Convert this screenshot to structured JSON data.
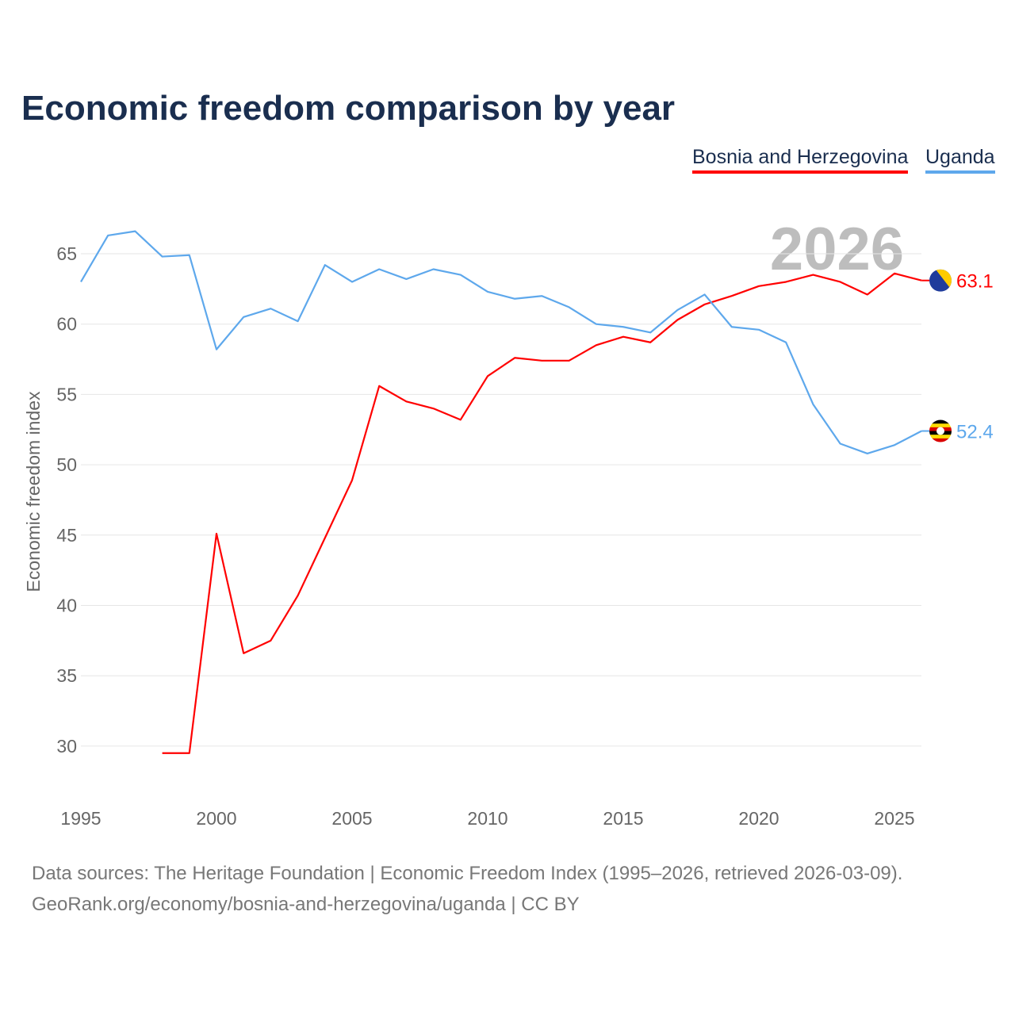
{
  "chart_data": {
    "type": "line",
    "title": "Economic freedom comparison by year",
    "ylabel": "Economic freedom index",
    "xlabel": "",
    "xlim": [
      1995,
      2026
    ],
    "ylim": [
      27.5,
      68
    ],
    "xticks": [
      1995,
      2000,
      2005,
      2010,
      2015,
      2020,
      2025
    ],
    "yticks": [
      30,
      35,
      40,
      45,
      50,
      55,
      60,
      65
    ],
    "grid": true,
    "legend_position": "top-right",
    "year_watermark": "2026",
    "series": [
      {
        "name": "Bosnia and Herzegovina",
        "color": "#ff0000",
        "flag": "bosnia-flag",
        "end_label": "63.1",
        "x": [
          1998,
          1999,
          2000,
          2001,
          2002,
          2003,
          2004,
          2005,
          2006,
          2007,
          2008,
          2009,
          2010,
          2011,
          2012,
          2013,
          2014,
          2015,
          2016,
          2017,
          2018,
          2019,
          2020,
          2021,
          2022,
          2023,
          2024,
          2025,
          2026
        ],
        "values": [
          29.5,
          29.5,
          45.1,
          36.6,
          37.5,
          40.7,
          44.8,
          48.9,
          55.6,
          54.5,
          54.0,
          53.2,
          56.3,
          57.6,
          57.4,
          57.4,
          58.5,
          59.1,
          58.7,
          60.3,
          61.4,
          62.0,
          62.7,
          63.0,
          63.5,
          63.0,
          62.1,
          63.6,
          63.1
        ]
      },
      {
        "name": "Uganda",
        "color": "#5ea8ec",
        "flag": "uganda-flag",
        "end_label": "52.4",
        "x": [
          1995,
          1996,
          1997,
          1998,
          1999,
          2000,
          2001,
          2002,
          2003,
          2004,
          2005,
          2006,
          2007,
          2008,
          2009,
          2010,
          2011,
          2012,
          2013,
          2014,
          2015,
          2016,
          2017,
          2018,
          2019,
          2020,
          2021,
          2022,
          2023,
          2024,
          2025,
          2026
        ],
        "values": [
          63.0,
          66.3,
          66.6,
          64.8,
          64.9,
          58.2,
          60.5,
          61.1,
          60.2,
          64.2,
          63.0,
          63.9,
          63.2,
          63.9,
          63.5,
          62.3,
          61.8,
          62.0,
          61.2,
          60.0,
          59.8,
          59.4,
          61.0,
          62.1,
          59.8,
          59.6,
          58.7,
          54.3,
          51.5,
          50.8,
          51.4,
          52.4
        ]
      }
    ]
  },
  "source_line1": "Data sources: The Heritage Foundation | Economic Freedom Index (1995–2026, retrieved 2026-03-09).",
  "source_line2": "GeoRank.org/economy/bosnia-and-herzegovina/uganda | CC BY"
}
